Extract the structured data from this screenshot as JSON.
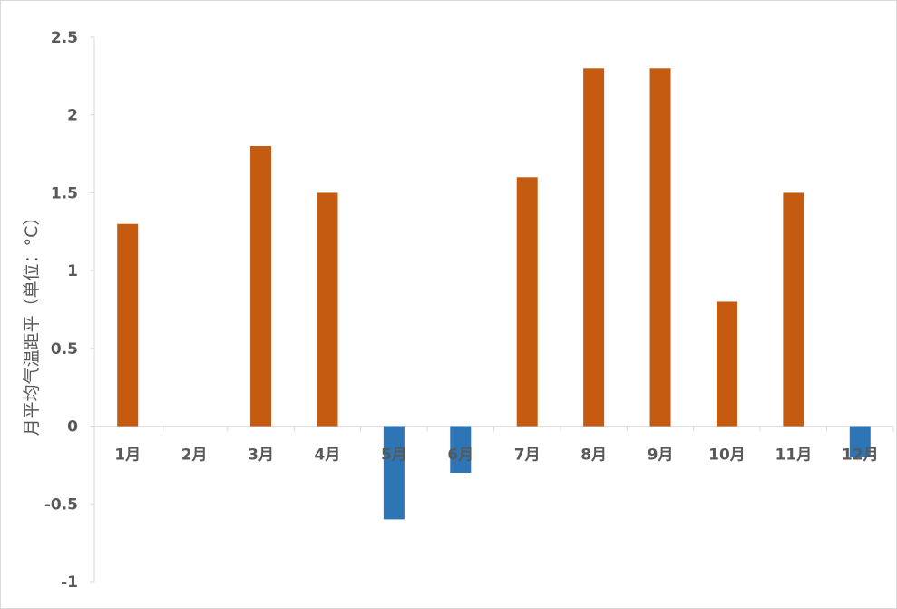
{
  "chart_data": {
    "type": "bar",
    "categories": [
      "1月",
      "2月",
      "3月",
      "4月",
      "5月",
      "6月",
      "7月",
      "8月",
      "9月",
      "10月",
      "11月",
      "12月"
    ],
    "values": [
      1.3,
      0,
      1.8,
      1.5,
      -0.6,
      -0.3,
      1.6,
      2.3,
      2.3,
      0.8,
      1.5,
      -0.2
    ],
    "title": "",
    "xlabel": "",
    "ylabel": "月平均气温距平（单位：°C）",
    "ylim": [
      -1,
      2.5
    ],
    "yticks": [
      "2.5",
      "2",
      "1.5",
      "1",
      "0.5",
      "0",
      "-0.5",
      "-1"
    ],
    "ytick_values": [
      2.5,
      2,
      1.5,
      1,
      0.5,
      0,
      -0.5,
      -1
    ],
    "grid": false,
    "legend": "none",
    "colors": {
      "positive": "#c55a11",
      "negative": "#2e75b6",
      "axis": "#d9d9d9",
      "text": "#595959"
    }
  }
}
